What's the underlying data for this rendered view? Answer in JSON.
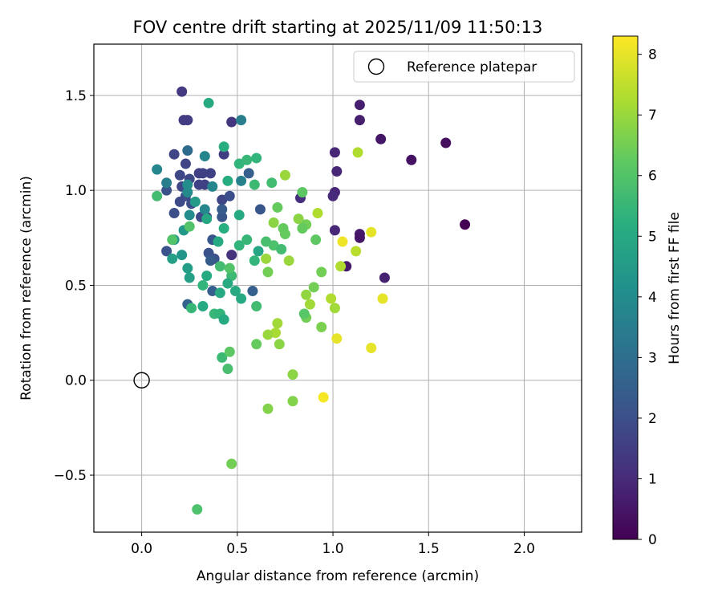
{
  "chart_data": {
    "type": "scatter",
    "title": "FOV centre drift starting at 2025/11/09 11:50:13",
    "xlabel": "Angular distance from reference (arcmin)",
    "ylabel": "Rotation from reference (arcmin)",
    "xlim": [
      -0.25,
      2.3
    ],
    "ylim": [
      -0.8,
      1.77
    ],
    "xticks": [
      0.0,
      0.5,
      1.0,
      1.5,
      2.0
    ],
    "xtick_labels": [
      "0.0",
      "0.5",
      "1.0",
      "1.5",
      "2.0"
    ],
    "yticks": [
      -0.5,
      0.0,
      0.5,
      1.0,
      1.5
    ],
    "ytick_labels": [
      "−0.5",
      "0.0",
      "0.5",
      "1.0",
      "1.5"
    ],
    "grid": true,
    "legend": {
      "label": "Reference platepar",
      "placement": "top-right"
    },
    "reference_point": {
      "x": 0.0,
      "y": 0.0
    },
    "colorbar": {
      "label": "Hours from first FF file",
      "colormap": "viridis",
      "range": [
        0,
        8.3
      ],
      "ticks": [
        0,
        1,
        2,
        3,
        4,
        5,
        6,
        7,
        8
      ],
      "tick_labels": [
        "0",
        "1",
        "2",
        "3",
        "4",
        "5",
        "6",
        "7",
        "8"
      ]
    },
    "points": [
      {
        "x": 1.69,
        "y": 0.82,
        "t": 0.0
      },
      {
        "x": 1.59,
        "y": 1.25,
        "t": 0.3
      },
      {
        "x": 1.41,
        "y": 1.16,
        "t": 0.4
      },
      {
        "x": 1.25,
        "y": 1.27,
        "t": 0.5
      },
      {
        "x": 1.14,
        "y": 1.45,
        "t": 0.7
      },
      {
        "x": 1.14,
        "y": 1.37,
        "t": 0.7
      },
      {
        "x": 1.27,
        "y": 0.54,
        "t": 0.8
      },
      {
        "x": 1.14,
        "y": 0.77,
        "t": 0.6
      },
      {
        "x": 1.14,
        "y": 0.75,
        "t": 0.5
      },
      {
        "x": 1.07,
        "y": 0.6,
        "t": 0.6
      },
      {
        "x": 1.01,
        "y": 1.2,
        "t": 0.9
      },
      {
        "x": 1.02,
        "y": 1.1,
        "t": 0.9
      },
      {
        "x": 1.01,
        "y": 0.99,
        "t": 0.9
      },
      {
        "x": 1.0,
        "y": 0.97,
        "t": 1.0
      },
      {
        "x": 1.01,
        "y": 0.79,
        "t": 0.9
      },
      {
        "x": 0.83,
        "y": 0.96,
        "t": 1.1
      },
      {
        "x": 0.47,
        "y": 1.36,
        "t": 1.3
      },
      {
        "x": 0.47,
        "y": 0.66,
        "t": 1.2
      },
      {
        "x": 0.21,
        "y": 1.52,
        "t": 1.4
      },
      {
        "x": 0.22,
        "y": 1.37,
        "t": 1.5
      },
      {
        "x": 0.24,
        "y": 1.37,
        "t": 1.5
      },
      {
        "x": 0.43,
        "y": 1.19,
        "t": 1.5
      },
      {
        "x": 0.3,
        "y": 1.09,
        "t": 1.6
      },
      {
        "x": 0.32,
        "y": 1.09,
        "t": 1.6
      },
      {
        "x": 0.36,
        "y": 1.09,
        "t": 1.6
      },
      {
        "x": 0.3,
        "y": 1.03,
        "t": 1.6
      },
      {
        "x": 0.33,
        "y": 1.03,
        "t": 1.6
      },
      {
        "x": 0.17,
        "y": 1.19,
        "t": 1.7
      },
      {
        "x": 0.23,
        "y": 1.14,
        "t": 1.7
      },
      {
        "x": 0.2,
        "y": 1.08,
        "t": 1.8
      },
      {
        "x": 0.21,
        "y": 1.02,
        "t": 1.8
      },
      {
        "x": 0.25,
        "y": 1.06,
        "t": 1.8
      },
      {
        "x": 0.23,
        "y": 0.97,
        "t": 1.9
      },
      {
        "x": 0.2,
        "y": 0.94,
        "t": 1.9
      },
      {
        "x": 0.26,
        "y": 0.93,
        "t": 1.9
      },
      {
        "x": 0.31,
        "y": 0.86,
        "t": 1.8
      },
      {
        "x": 0.34,
        "y": 0.86,
        "t": 1.7
      },
      {
        "x": 0.42,
        "y": 0.95,
        "t": 1.7
      },
      {
        "x": 0.46,
        "y": 0.97,
        "t": 2.0
      },
      {
        "x": 0.17,
        "y": 0.88,
        "t": 2.0
      },
      {
        "x": 0.13,
        "y": 1.0,
        "t": 2.1
      },
      {
        "x": 0.13,
        "y": 0.68,
        "t": 2.1
      },
      {
        "x": 0.35,
        "y": 0.67,
        "t": 2.1
      },
      {
        "x": 0.38,
        "y": 0.64,
        "t": 2.1
      },
      {
        "x": 0.37,
        "y": 0.74,
        "t": 2.2
      },
      {
        "x": 0.42,
        "y": 0.86,
        "t": 2.2
      },
      {
        "x": 0.42,
        "y": 0.9,
        "t": 2.4
      },
      {
        "x": 0.36,
        "y": 0.63,
        "t": 2.4
      },
      {
        "x": 0.37,
        "y": 0.47,
        "t": 2.5
      },
      {
        "x": 0.24,
        "y": 0.4,
        "t": 2.6
      },
      {
        "x": 0.58,
        "y": 0.47,
        "t": 2.5
      },
      {
        "x": 0.62,
        "y": 0.9,
        "t": 2.2
      },
      {
        "x": 0.56,
        "y": 1.09,
        "t": 2.5
      },
      {
        "x": 0.52,
        "y": 1.37,
        "t": 3.5
      },
      {
        "x": 0.52,
        "y": 1.05,
        "t": 3.6
      },
      {
        "x": 0.33,
        "y": 1.18,
        "t": 3.7
      },
      {
        "x": 0.24,
        "y": 1.21,
        "t": 2.9
      },
      {
        "x": 0.13,
        "y": 1.04,
        "t": 3.5
      },
      {
        "x": 0.08,
        "y": 1.11,
        "t": 3.8
      },
      {
        "x": 0.24,
        "y": 1.03,
        "t": 4.0
      },
      {
        "x": 0.24,
        "y": 0.99,
        "t": 3.9
      },
      {
        "x": 0.37,
        "y": 1.02,
        "t": 3.8
      },
      {
        "x": 0.33,
        "y": 0.9,
        "t": 3.8
      },
      {
        "x": 0.25,
        "y": 0.87,
        "t": 4.0
      },
      {
        "x": 0.28,
        "y": 0.94,
        "t": 4.5
      },
      {
        "x": 0.22,
        "y": 0.79,
        "t": 4.4
      },
      {
        "x": 0.17,
        "y": 0.74,
        "t": 4.4
      },
      {
        "x": 0.21,
        "y": 0.66,
        "t": 4.3
      },
      {
        "x": 0.16,
        "y": 0.64,
        "t": 4.7
      },
      {
        "x": 0.24,
        "y": 0.59,
        "t": 4.6
      },
      {
        "x": 0.25,
        "y": 0.54,
        "t": 4.7
      },
      {
        "x": 0.34,
        "y": 0.85,
        "t": 4.9
      },
      {
        "x": 0.4,
        "y": 0.73,
        "t": 5.0
      },
      {
        "x": 0.43,
        "y": 0.8,
        "t": 5.2
      },
      {
        "x": 0.45,
        "y": 1.05,
        "t": 5.1
      },
      {
        "x": 0.43,
        "y": 1.23,
        "t": 5.2
      },
      {
        "x": 0.35,
        "y": 1.46,
        "t": 5.0
      },
      {
        "x": 0.51,
        "y": 0.87,
        "t": 5.0
      },
      {
        "x": 0.51,
        "y": 1.14,
        "t": 5.4
      },
      {
        "x": 0.55,
        "y": 1.16,
        "t": 5.5
      },
      {
        "x": 0.6,
        "y": 1.17,
        "t": 5.4
      },
      {
        "x": 0.59,
        "y": 1.03,
        "t": 5.6
      },
      {
        "x": 0.68,
        "y": 1.04,
        "t": 5.7
      },
      {
        "x": 0.61,
        "y": 0.68,
        "t": 4.9
      },
      {
        "x": 0.59,
        "y": 0.63,
        "t": 5.4
      },
      {
        "x": 0.51,
        "y": 0.71,
        "t": 5.4
      },
      {
        "x": 0.55,
        "y": 0.74,
        "t": 5.5
      },
      {
        "x": 0.47,
        "y": 0.55,
        "t": 5.6
      },
      {
        "x": 0.45,
        "y": 0.51,
        "t": 5.0
      },
      {
        "x": 0.49,
        "y": 0.47,
        "t": 5.0
      },
      {
        "x": 0.52,
        "y": 0.43,
        "t": 5.0
      },
      {
        "x": 0.41,
        "y": 0.6,
        "t": 5.7
      },
      {
        "x": 0.41,
        "y": 0.46,
        "t": 5.0
      },
      {
        "x": 0.32,
        "y": 0.5,
        "t": 5.4
      },
      {
        "x": 0.34,
        "y": 0.55,
        "t": 5.0
      },
      {
        "x": 0.32,
        "y": 0.39,
        "t": 5.0
      },
      {
        "x": 0.26,
        "y": 0.38,
        "t": 5.5
      },
      {
        "x": 0.38,
        "y": 0.35,
        "t": 5.5
      },
      {
        "x": 0.41,
        "y": 0.35,
        "t": 5.4
      },
      {
        "x": 0.43,
        "y": 0.32,
        "t": 5.0
      },
      {
        "x": 0.42,
        "y": 0.12,
        "t": 5.6
      },
      {
        "x": 0.45,
        "y": 0.06,
        "t": 5.8
      },
      {
        "x": 0.46,
        "y": 0.15,
        "t": 6.2
      },
      {
        "x": 0.47,
        "y": -0.44,
        "t": 6.5
      },
      {
        "x": 0.29,
        "y": -0.68,
        "t": 5.9
      },
      {
        "x": 0.08,
        "y": 0.97,
        "t": 5.7
      },
      {
        "x": 0.16,
        "y": 0.74,
        "t": 6.0
      },
      {
        "x": 0.25,
        "y": 0.81,
        "t": 6.0
      },
      {
        "x": 0.46,
        "y": 0.59,
        "t": 6.0
      },
      {
        "x": 0.6,
        "y": 0.39,
        "t": 5.7
      },
      {
        "x": 0.65,
        "y": 0.73,
        "t": 5.8
      },
      {
        "x": 0.69,
        "y": 0.71,
        "t": 5.9
      },
      {
        "x": 0.73,
        "y": 0.69,
        "t": 5.7
      },
      {
        "x": 0.74,
        "y": 0.8,
        "t": 6.3
      },
      {
        "x": 0.75,
        "y": 0.77,
        "t": 6.3
      },
      {
        "x": 0.71,
        "y": 0.91,
        "t": 6.3
      },
      {
        "x": 0.69,
        "y": 0.83,
        "t": 6.8
      },
      {
        "x": 0.75,
        "y": 1.08,
        "t": 7.0
      },
      {
        "x": 0.84,
        "y": 0.99,
        "t": 6.2
      },
      {
        "x": 0.82,
        "y": 0.85,
        "t": 6.8
      },
      {
        "x": 0.86,
        "y": 0.82,
        "t": 6.5
      },
      {
        "x": 0.84,
        "y": 0.8,
        "t": 6.3
      },
      {
        "x": 0.91,
        "y": 0.74,
        "t": 6.2
      },
      {
        "x": 0.92,
        "y": 0.88,
        "t": 7.3
      },
      {
        "x": 0.65,
        "y": 0.64,
        "t": 7.0
      },
      {
        "x": 0.66,
        "y": 0.57,
        "t": 6.5
      },
      {
        "x": 0.77,
        "y": 0.63,
        "t": 7.0
      },
      {
        "x": 0.9,
        "y": 0.49,
        "t": 6.5
      },
      {
        "x": 0.94,
        "y": 0.57,
        "t": 6.5
      },
      {
        "x": 0.99,
        "y": 0.43,
        "t": 7.3
      },
      {
        "x": 1.01,
        "y": 0.38,
        "t": 7.1
      },
      {
        "x": 0.86,
        "y": 0.45,
        "t": 6.9
      },
      {
        "x": 0.86,
        "y": 0.33,
        "t": 6.5
      },
      {
        "x": 0.85,
        "y": 0.35,
        "t": 6.1
      },
      {
        "x": 0.88,
        "y": 0.4,
        "t": 7.1
      },
      {
        "x": 0.94,
        "y": 0.28,
        "t": 6.6
      },
      {
        "x": 0.71,
        "y": 0.3,
        "t": 7.1
      },
      {
        "x": 0.7,
        "y": 0.25,
        "t": 7.2
      },
      {
        "x": 0.66,
        "y": 0.24,
        "t": 7.0
      },
      {
        "x": 0.72,
        "y": 0.19,
        "t": 6.8
      },
      {
        "x": 0.6,
        "y": 0.19,
        "t": 6.3
      },
      {
        "x": 0.79,
        "y": 0.03,
        "t": 6.8
      },
      {
        "x": 0.79,
        "y": -0.11,
        "t": 6.7
      },
      {
        "x": 0.66,
        "y": -0.15,
        "t": 6.7
      },
      {
        "x": 1.04,
        "y": 0.6,
        "t": 7.3
      },
      {
        "x": 1.12,
        "y": 0.68,
        "t": 7.4
      },
      {
        "x": 1.13,
        "y": 1.2,
        "t": 7.3
      },
      {
        "x": 1.05,
        "y": 0.73,
        "t": 8.1
      },
      {
        "x": 1.2,
        "y": 0.78,
        "t": 8.0
      },
      {
        "x": 1.26,
        "y": 0.43,
        "t": 8.0
      },
      {
        "x": 1.02,
        "y": 0.22,
        "t": 8.0
      },
      {
        "x": 1.2,
        "y": 0.17,
        "t": 8.0
      },
      {
        "x": 0.95,
        "y": -0.09,
        "t": 8.2
      }
    ]
  }
}
